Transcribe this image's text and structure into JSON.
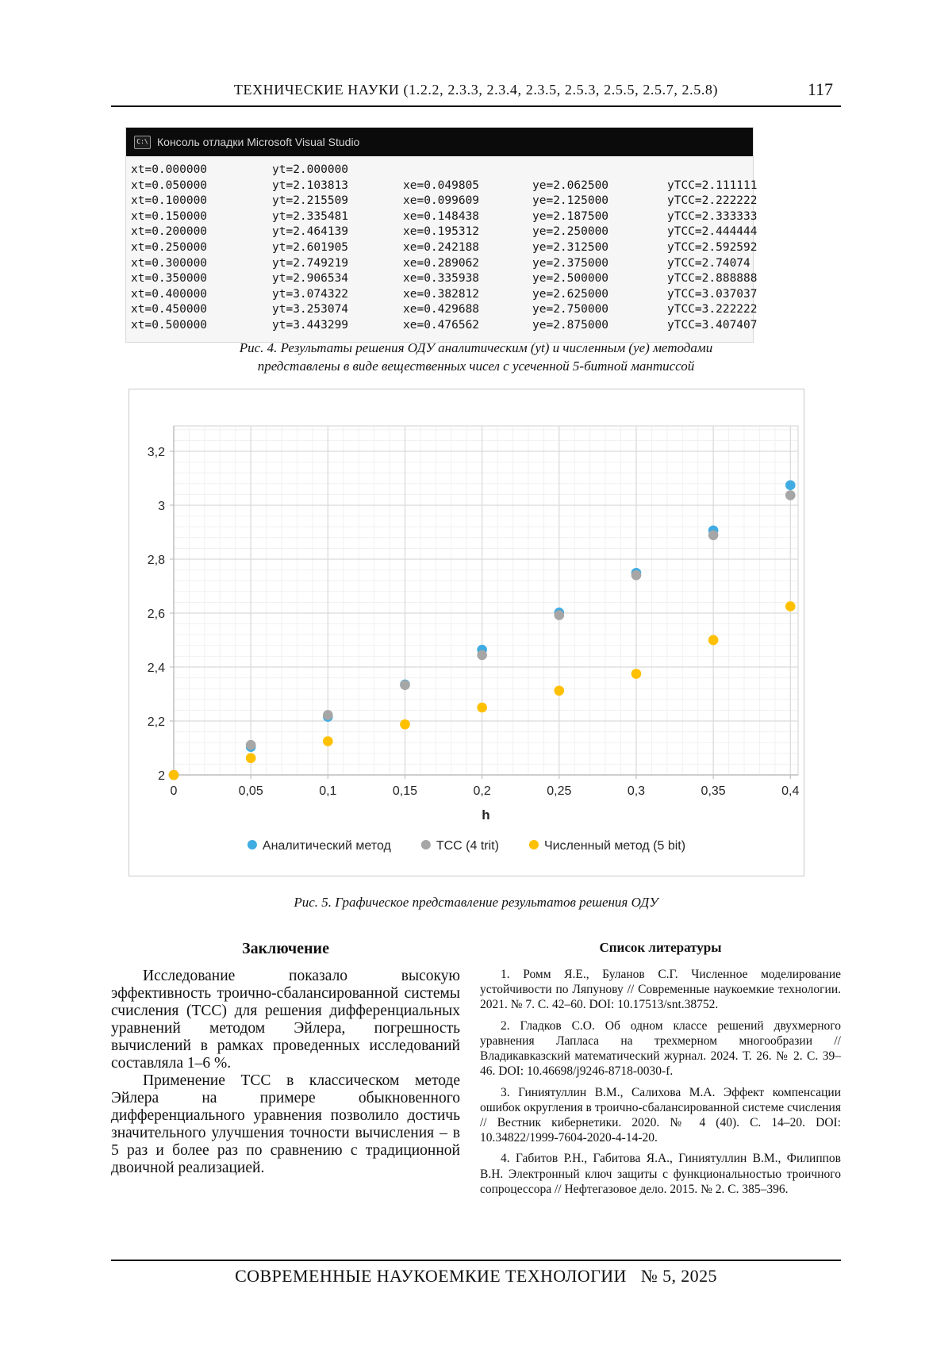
{
  "header": {
    "title": "ТЕХНИЧЕСКИЕ НАУКИ (1.2.2, 2.3.3, 2.3.4, 2.3.5, 2.5.3, 2.5.5, 2.5.7, 2.5.8)",
    "page_number": "117"
  },
  "console": {
    "title": "Консоль отладки Microsoft Visual Studio",
    "icon": "console-window-icon",
    "rows": [
      [
        "xt=0.000000",
        "yt=2.000000",
        "",
        "",
        ""
      ],
      [
        "xt=0.050000",
        "yt=2.103813",
        "xe=0.049805",
        "ye=2.062500",
        "yTCC=2.111111"
      ],
      [
        "xt=0.100000",
        "yt=2.215509",
        "xe=0.099609",
        "ye=2.125000",
        "yTCC=2.222222"
      ],
      [
        "xt=0.150000",
        "yt=2.335481",
        "xe=0.148438",
        "ye=2.187500",
        "yTCC=2.333333"
      ],
      [
        "xt=0.200000",
        "yt=2.464139",
        "xe=0.195312",
        "ye=2.250000",
        "yTCC=2.444444"
      ],
      [
        "xt=0.250000",
        "yt=2.601905",
        "xe=0.242188",
        "ye=2.312500",
        "yTCC=2.592592"
      ],
      [
        "xt=0.300000",
        "yt=2.749219",
        "xe=0.289062",
        "ye=2.375000",
        "yTCC=2.74074"
      ],
      [
        "xt=0.350000",
        "yt=2.906534",
        "xe=0.335938",
        "ye=2.500000",
        "yTCC=2.888888"
      ],
      [
        "xt=0.400000",
        "yt=3.074322",
        "xe=0.382812",
        "ye=2.625000",
        "yTCC=3.037037"
      ],
      [
        "xt=0.450000",
        "yt=3.253074",
        "xe=0.429688",
        "ye=2.750000",
        "yTCC=3.222222"
      ],
      [
        "xt=0.500000",
        "yt=3.443299",
        "xe=0.476562",
        "ye=2.875000",
        "yTCC=3.407407"
      ]
    ]
  },
  "figure4": {
    "line1": "Рис. 4. Результаты решения ОДУ аналитическим (yt) и численным (ye) методами",
    "line2": "представлены в виде вещественных чисел с усеченной 5-битной мантиссой"
  },
  "chart_data": {
    "type": "scatter",
    "title": "",
    "xlabel": "h",
    "ylabel": "",
    "x": [
      0,
      0.05,
      0.1,
      0.15,
      0.2,
      0.25,
      0.3,
      0.35,
      0.4
    ],
    "series": [
      {
        "name": "Аналитический метод",
        "color": "#41ACE1",
        "values": [
          2.0,
          2.103813,
          2.215509,
          2.335481,
          2.464139,
          2.601905,
          2.749219,
          2.906534,
          3.074322
        ]
      },
      {
        "name": "ТСС (4 trit)",
        "color": "#A6A6A6",
        "values": [
          2.0,
          2.111111,
          2.222222,
          2.333333,
          2.444444,
          2.592592,
          2.74074,
          2.888888,
          3.037037
        ]
      },
      {
        "name": "Численный метод  (5 bit)",
        "color": "#FFC000",
        "values": [
          2.0,
          2.0625,
          2.125,
          2.1875,
          2.25,
          2.3125,
          2.375,
          2.5,
          2.625
        ]
      }
    ],
    "x_ticks": [
      0,
      0.05,
      0.1,
      0.15,
      0.2,
      0.25,
      0.3,
      0.35,
      0.4
    ],
    "x_tick_labels": [
      "0",
      "0,05",
      "0,1",
      "0,15",
      "0,2",
      "0,25",
      "0,3",
      "0,35",
      "0,4"
    ],
    "y_ticks": [
      2,
      2.2,
      2.4,
      2.6,
      2.8,
      3,
      3.2
    ],
    "y_tick_labels": [
      "2",
      "2,2",
      "2,4",
      "2,6",
      "2,8",
      "3",
      "3,2"
    ],
    "xlim": [
      0,
      0.405
    ],
    "ylim": [
      2,
      3.294
    ],
    "minor_x_step": 0.01,
    "minor_y_step": 0.04,
    "grid": true,
    "legend_position": "bottom"
  },
  "figure5": {
    "caption": "Рис. 5. Графическое представление результатов решения ОДУ"
  },
  "conclusion": {
    "heading": "Заключение",
    "paragraphs": [
      "Исследование показало высокую эффективность троично-сбалансированной системы счисления (ТСС) для решения дифференциальных уравнений методом Эйлера, погрешность вычислений в рамках проведенных исследований составляла 1–6 %.",
      "Применение ТСС в классическом методе Эйлера на примере обыкновенного дифференциального уравнения позволило достичь значительного улучшения точности вычисления – в 5 раз и более раз по сравнению с традиционной двоичной реализацией."
    ]
  },
  "references": {
    "heading": "Список литературы",
    "items": [
      "1. Ромм Я.Е., Буланов С.Г. Численное моделирование устойчивости по Ляпунову // Современные наукоемкие технологии. 2021. № 7. С. 42–60. DOI: 10.17513/snt.38752.",
      "2. Гладков С.О. Об одном классе решений двухмерного уравнения Лапласа на трехмерном многообразии // Владикавказский математический журнал. 2024. Т. 26. № 2. С. 39–46. DOI: 10.46698/j9246-8718-0030-f.",
      "3. Гиниятуллин В.М., Салихова М.А. Эффект компенсации ошибок округления в троично-сбалансированной системе счисления // Вестник кибернетики. 2020. № 4 (40). С. 14–20. DOI: 10.34822/1999-7604-2020-4-14-20.",
      "4. Габитов Р.Н., Габитова Я.А., Гиниятуллин В.М., Филиппов В.Н. Электронный ключ защиты с функциональностью троичного сопроцессора // Нефтегазовое дело. 2015. № 2. С. 385–396."
    ]
  },
  "footer": {
    "journal": "СОВРЕМЕННЫЕ НАУКОЕМКИЕ ТЕХНОЛОГИИ",
    "issue": "№ 5, 2025"
  }
}
